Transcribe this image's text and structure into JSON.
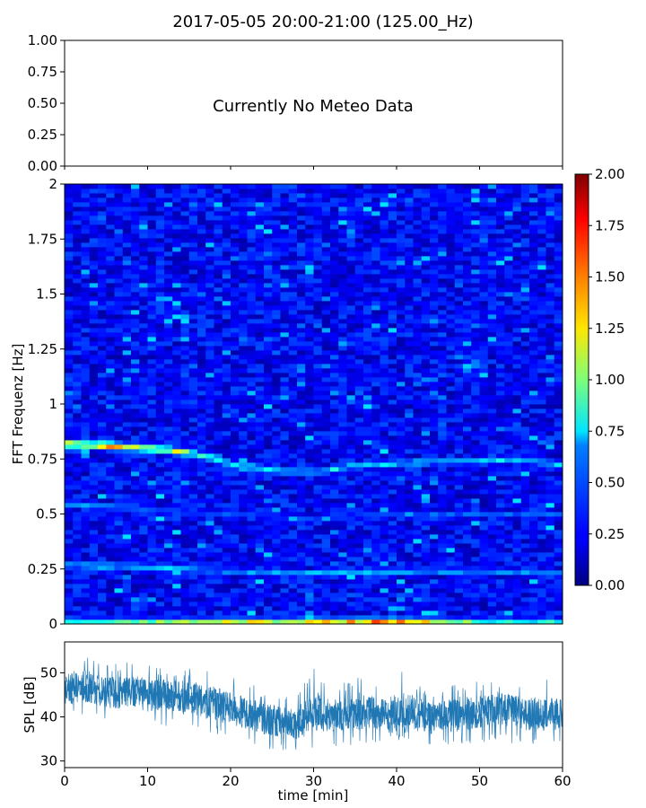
{
  "title": "2017-05-05 20:00-21:00 (125.00_Hz)",
  "chart_data": [
    {
      "type": "line",
      "panel": "meteo",
      "annotation": "Currently No Meteo Data",
      "ylim": [
        0,
        1
      ],
      "yticks": [
        "0.00",
        "0.25",
        "0.50",
        "0.75",
        "1.00"
      ],
      "xlim": [
        0,
        60
      ],
      "series": []
    },
    {
      "type": "heatmap",
      "panel": "spectrogram",
      "ylabel": "FFT Frequenz [Hz]",
      "xlim": [
        0,
        60
      ],
      "ylim": [
        0,
        2
      ],
      "yticks": [
        "0",
        "0.25",
        "0.5",
        "0.75",
        "1",
        "1.25",
        "1.5",
        "1.75",
        "2"
      ],
      "colorscale": "jet",
      "color_range": [
        0,
        2
      ],
      "colorbar_ticks": [
        "0.00",
        "0.25",
        "0.50",
        "0.75",
        "1.00",
        "1.25",
        "1.50",
        "1.75",
        "2.00"
      ],
      "background_level": 0.2,
      "ridges": [
        {
          "x": [
            0,
            5,
            10,
            15,
            20,
            25,
            30,
            35,
            40,
            45,
            50,
            55,
            60
          ],
          "y": [
            0.82,
            0.81,
            0.8,
            0.78,
            0.73,
            0.7,
            0.69,
            0.72,
            0.73,
            0.74,
            0.74,
            0.75,
            0.72
          ],
          "level": [
            1.5,
            1.6,
            1.3,
            1.2,
            0.8,
            0.8,
            0.8,
            0.75,
            0.75,
            0.75,
            0.7,
            0.8,
            0.7
          ]
        },
        {
          "x": [
            0,
            10,
            20,
            30,
            40,
            50,
            60
          ],
          "y": [
            0.27,
            0.26,
            0.24,
            0.23,
            0.24,
            0.24,
            0.23
          ],
          "level": [
            0.8,
            0.7,
            0.6,
            0.7,
            0.7,
            0.6,
            0.6
          ]
        },
        {
          "x": [
            0,
            10,
            20,
            30,
            40,
            50,
            60
          ],
          "y": [
            0.55,
            0.52,
            0.5,
            0.48,
            0.5,
            0.5,
            0.5
          ],
          "level": [
            0.7,
            0.5,
            0.45,
            0.45,
            0.45,
            0.45,
            0.45
          ]
        },
        {
          "x": [
            0,
            10,
            20,
            30,
            40,
            50,
            60
          ],
          "y": [
            0.01,
            0.01,
            0.01,
            0.01,
            0.01,
            0.01,
            0.01
          ],
          "level": [
            0.8,
            1.0,
            1.2,
            1.3,
            1.6,
            0.9,
            0.8
          ]
        }
      ]
    },
    {
      "type": "line",
      "panel": "spl",
      "xlabel": "time [min]",
      "ylabel": "SPL [dB]",
      "xlim": [
        0,
        60
      ],
      "ylim": [
        28.5,
        57
      ],
      "xticks": [
        "0",
        "10",
        "20",
        "30",
        "40",
        "50",
        "60"
      ],
      "yticks": [
        "30",
        "40",
        "50"
      ],
      "line_color": "#1f77b4",
      "envelope": {
        "x": [
          0,
          2,
          4,
          6,
          8,
          10,
          12,
          14,
          16,
          18,
          20,
          22,
          24,
          26,
          28,
          30,
          32,
          34,
          36,
          38,
          40,
          42,
          44,
          46,
          48,
          50,
          52,
          54,
          56,
          58,
          60
        ],
        "mid": [
          46,
          47,
          46,
          45.5,
          46,
          45,
          45,
          44.5,
          44,
          43,
          42,
          41,
          39.5,
          39,
          38.5,
          41,
          40,
          40.5,
          41.5,
          40.5,
          40.5,
          41,
          39.5,
          40.5,
          40.5,
          41,
          42,
          41.5,
          40.5,
          41,
          40.5
        ],
        "low": [
          40,
          40,
          39,
          38,
          39,
          38,
          38,
          37,
          37,
          36,
          35,
          34,
          33,
          32,
          32,
          33,
          33,
          33,
          34,
          34,
          34,
          33,
          33,
          33,
          33,
          34,
          34,
          34,
          33,
          33,
          34
        ],
        "high": [
          53,
          55,
          53,
          52,
          53,
          52,
          51,
          51,
          51,
          50,
          49,
          48,
          46,
          45,
          45,
          52,
          47,
          48,
          50,
          47,
          53,
          48,
          46,
          47,
          48,
          48,
          48,
          48,
          47,
          50,
          47
        ]
      }
    }
  ]
}
